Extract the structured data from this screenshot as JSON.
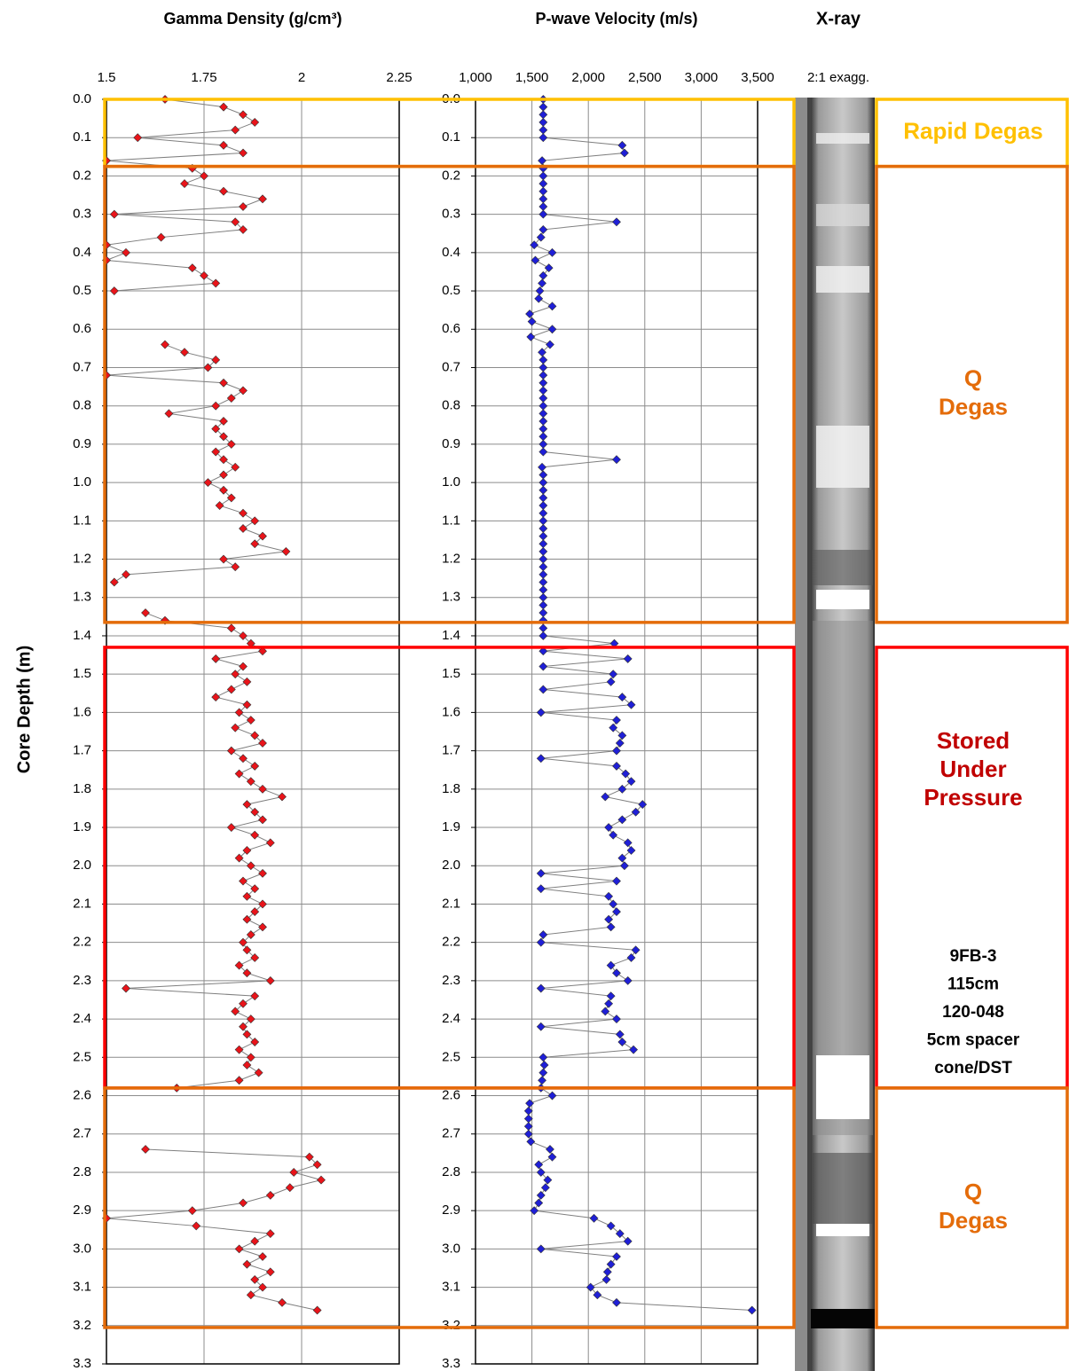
{
  "chart_data": [
    {
      "type": "line",
      "title": "Gamma Density (g/cm³)",
      "y_label": "Core Depth (m)",
      "xlim": [
        1.5,
        2.25
      ],
      "xticks": [
        1.5,
        1.75,
        2,
        2.25
      ],
      "ylim": [
        0,
        3.3
      ],
      "y_reversed": true,
      "yticks": [
        {
          "value": 0,
          "label": "0.0"
        },
        0.1,
        0.2,
        0.3,
        0.4,
        0.5,
        0.6,
        0.7,
        0.8,
        0.9,
        {
          "value": 1,
          "label": "1.0"
        },
        1.1,
        1.2,
        1.3,
        1.4,
        1.5,
        1.6,
        1.7,
        1.8,
        1.9,
        {
          "value": 2,
          "label": "2.0"
        },
        2.1,
        2.2,
        2.3,
        2.4,
        2.5,
        2.6,
        2.7,
        2.8,
        2.9,
        {
          "value": 3,
          "label": "3.0"
        },
        3.1,
        3.2,
        3.3
      ],
      "grid": true,
      "color": "#e8141a",
      "line_color": "#7f7f7f",
      "y": [
        0,
        0.02,
        0.04,
        0.06,
        0.08,
        0.1,
        0.12,
        0.14,
        0.16,
        0.18,
        0.2,
        0.22,
        0.24,
        0.26,
        0.28,
        0.3,
        0.32,
        0.34,
        0.36,
        0.38,
        0.4,
        0.42,
        0.44,
        0.46,
        0.48,
        0.5,
        0.52,
        0.54,
        0.56,
        0.58,
        0.6,
        0.62,
        0.64,
        0.66,
        0.68,
        0.7,
        0.72,
        0.74,
        0.76,
        0.78,
        0.8,
        0.82,
        0.84,
        0.86,
        0.88,
        0.9,
        0.92,
        0.94,
        0.96,
        0.98,
        1,
        1.02,
        1.04,
        1.06,
        1.08,
        1.1,
        1.12,
        1.14,
        1.16,
        1.18,
        1.2,
        1.22,
        1.24,
        1.26,
        1.28,
        1.3,
        1.32,
        1.34,
        1.36,
        1.38,
        1.4,
        1.42,
        1.44,
        1.46,
        1.48,
        1.5,
        1.52,
        1.54,
        1.56,
        1.58,
        1.6,
        1.62,
        1.64,
        1.66,
        1.68,
        1.7,
        1.72,
        1.74,
        1.76,
        1.78,
        1.8,
        1.82,
        1.84,
        1.86,
        1.88,
        1.9,
        1.92,
        1.94,
        1.96,
        1.98,
        2,
        2.02,
        2.04,
        2.06,
        2.08,
        2.1,
        2.12,
        2.14,
        2.16,
        2.18,
        2.2,
        2.22,
        2.24,
        2.26,
        2.28,
        2.3,
        2.32,
        2.34,
        2.36,
        2.38,
        2.4,
        2.42,
        2.44,
        2.46,
        2.48,
        2.5,
        2.52,
        2.54,
        2.56,
        2.58,
        2.6,
        2.62,
        2.64,
        2.66,
        2.68,
        2.7,
        2.72,
        2.74,
        2.76,
        2.78,
        2.8,
        2.82,
        2.84,
        2.86,
        2.88,
        2.9,
        2.92,
        2.94,
        2.96,
        2.98,
        3,
        3.02,
        3.04,
        3.06,
        3.08,
        3.1,
        3.12,
        3.14,
        3.16
      ],
      "values": [
        1.65,
        1.8,
        1.85,
        1.88,
        1.83,
        1.58,
        1.8,
        1.85,
        1.5,
        1.72,
        1.75,
        1.7,
        1.8,
        1.9,
        1.85,
        1.52,
        1.83,
        1.85,
        1.64,
        1.5,
        1.55,
        1.5,
        1.72,
        1.75,
        1.78,
        1.52,
        null,
        null,
        null,
        null,
        null,
        null,
        1.65,
        1.7,
        1.78,
        1.76,
        1.5,
        1.8,
        1.85,
        1.82,
        1.78,
        1.66,
        1.8,
        1.78,
        1.8,
        1.82,
        1.78,
        1.8,
        1.83,
        1.8,
        1.76,
        1.8,
        1.82,
        1.79,
        1.85,
        1.88,
        1.85,
        1.9,
        1.88,
        1.96,
        1.8,
        1.83,
        1.55,
        1.52,
        null,
        null,
        null,
        1.6,
        1.65,
        1.82,
        1.85,
        1.87,
        1.9,
        1.78,
        1.85,
        1.83,
        1.86,
        1.82,
        1.78,
        1.86,
        1.84,
        1.87,
        1.83,
        1.88,
        1.9,
        1.82,
        1.85,
        1.88,
        1.84,
        1.87,
        1.9,
        1.95,
        1.86,
        1.88,
        1.9,
        1.82,
        1.88,
        1.92,
        1.86,
        1.84,
        1.87,
        1.9,
        1.85,
        1.88,
        1.86,
        1.9,
        1.88,
        1.86,
        1.9,
        1.87,
        1.85,
        1.86,
        1.88,
        1.84,
        1.86,
        1.92,
        1.55,
        1.88,
        1.85,
        1.83,
        1.87,
        1.85,
        1.86,
        1.88,
        1.84,
        1.87,
        1.86,
        1.89,
        1.84,
        1.68,
        null,
        null,
        null,
        null,
        null,
        null,
        null,
        1.6,
        2.02,
        2.04,
        1.98,
        2.05,
        1.97,
        1.92,
        1.85,
        1.72,
        1.5,
        1.73,
        1.92,
        1.88,
        1.84,
        1.9,
        1.86,
        1.92,
        1.88,
        1.9,
        1.87,
        1.95,
        2.04
      ]
    },
    {
      "type": "line",
      "title": "P-wave Velocity (m/s)",
      "xlim": [
        1000,
        3500
      ],
      "xticks": [
        {
          "value": 1000,
          "label": "1,000"
        },
        {
          "value": 1500,
          "label": "1,500"
        },
        {
          "value": 2000,
          "label": "2,000"
        },
        {
          "value": 2500,
          "label": "2,500"
        },
        {
          "value": 3000,
          "label": "3,000"
        },
        {
          "value": 3500,
          "label": "3,500"
        }
      ],
      "ylim": [
        0,
        3.3
      ],
      "y_reversed": true,
      "yticks": [
        {
          "value": 0,
          "label": "0.0"
        },
        0.1,
        0.2,
        0.3,
        0.4,
        0.5,
        0.6,
        0.7,
        0.8,
        0.9,
        {
          "value": 1,
          "label": "1.0"
        },
        1.1,
        1.2,
        1.3,
        1.4,
        1.5,
        1.6,
        1.7,
        1.8,
        1.9,
        {
          "value": 2,
          "label": "2.0"
        },
        2.1,
        2.2,
        2.3,
        2.4,
        2.5,
        2.6,
        2.7,
        2.8,
        2.9,
        {
          "value": 3,
          "label": "3.0"
        },
        3.1,
        3.2,
        3.3
      ],
      "grid": true,
      "color": "#1f1fd6",
      "line_color": "#7f7f7f",
      "y": [
        0,
        0.02,
        0.04,
        0.06,
        0.08,
        0.1,
        0.12,
        0.14,
        0.16,
        0.18,
        0.2,
        0.22,
        0.24,
        0.26,
        0.28,
        0.3,
        0.32,
        0.34,
        0.36,
        0.38,
        0.4,
        0.42,
        0.44,
        0.46,
        0.48,
        0.5,
        0.52,
        0.54,
        0.56,
        0.58,
        0.6,
        0.62,
        0.64,
        0.66,
        0.68,
        0.7,
        0.72,
        0.74,
        0.76,
        0.78,
        0.8,
        0.82,
        0.84,
        0.86,
        0.88,
        0.9,
        0.92,
        0.94,
        0.96,
        0.98,
        1,
        1.02,
        1.04,
        1.06,
        1.08,
        1.1,
        1.12,
        1.14,
        1.16,
        1.18,
        1.2,
        1.22,
        1.24,
        1.26,
        1.28,
        1.3,
        1.32,
        1.34,
        1.36,
        1.38,
        1.4,
        1.42,
        1.44,
        1.46,
        1.48,
        1.5,
        1.52,
        1.54,
        1.56,
        1.58,
        1.6,
        1.62,
        1.64,
        1.66,
        1.68,
        1.7,
        1.72,
        1.74,
        1.76,
        1.78,
        1.8,
        1.82,
        1.84,
        1.86,
        1.88,
        1.9,
        1.92,
        1.94,
        1.96,
        1.98,
        2,
        2.02,
        2.04,
        2.06,
        2.08,
        2.1,
        2.12,
        2.14,
        2.16,
        2.18,
        2.2,
        2.22,
        2.24,
        2.26,
        2.28,
        2.3,
        2.32,
        2.34,
        2.36,
        2.38,
        2.4,
        2.42,
        2.44,
        2.46,
        2.48,
        2.5,
        2.52,
        2.54,
        2.56,
        2.58,
        2.6,
        2.62,
        2.64,
        2.66,
        2.68,
        2.7,
        2.72,
        2.74,
        2.76,
        2.78,
        2.8,
        2.82,
        2.84,
        2.86,
        2.88,
        2.9,
        2.92,
        2.94,
        2.96,
        2.98,
        3,
        3.02,
        3.04,
        3.06,
        3.08,
        3.1,
        3.12,
        3.14,
        3.16
      ],
      "values": [
        1600,
        1600,
        1600,
        1600,
        1600,
        1600,
        2300,
        2320,
        1590,
        1600,
        1600,
        1600,
        1600,
        1600,
        1600,
        1600,
        2250,
        1600,
        1580,
        1520,
        1680,
        1530,
        1650,
        1600,
        1590,
        1570,
        1560,
        1680,
        1480,
        1500,
        1680,
        1490,
        1660,
        1590,
        1600,
        1600,
        1600,
        1600,
        1600,
        1600,
        1600,
        1600,
        1600,
        1600,
        1600,
        1600,
        1600,
        2250,
        1590,
        1600,
        1600,
        1600,
        1600,
        1600,
        1600,
        1600,
        1600,
        1600,
        1600,
        1600,
        1600,
        1600,
        1600,
        1600,
        1600,
        1600,
        1600,
        1600,
        1600,
        1600,
        1600,
        2230,
        1600,
        2350,
        1600,
        2220,
        2200,
        1600,
        2300,
        2380,
        1580,
        2250,
        2220,
        2300,
        2280,
        2250,
        1580,
        2250,
        2330,
        2380,
        2300,
        2150,
        2480,
        2420,
        2300,
        2180,
        2220,
        2350,
        2380,
        2300,
        2320,
        1580,
        2250,
        1580,
        2180,
        2220,
        2250,
        2180,
        2200,
        1600,
        1580,
        2420,
        2380,
        2200,
        2250,
        2350,
        1580,
        2200,
        2180,
        2150,
        2250,
        1580,
        2280,
        2300,
        2400,
        1600,
        1610,
        1600,
        1590,
        1580,
        1680,
        1480,
        1470,
        1470,
        1470,
        1470,
        1490,
        1660,
        1680,
        1560,
        1580,
        1640,
        1620,
        1580,
        1560,
        1520,
        2050,
        2200,
        2280,
        2350,
        1580,
        2250,
        2200,
        2170,
        2160,
        2020,
        2080,
        2250,
        3450
      ]
    }
  ],
  "xray": {
    "title": "X-ray",
    "subtitle": "2:1 exagg."
  },
  "zones": [
    {
      "label": [
        "Rapid Degas"
      ],
      "top": 0,
      "bottom": 0.175,
      "color": "#ffc000",
      "text_color": "#ffc000"
    },
    {
      "label": [
        "Q",
        "Degas"
      ],
      "top": 0.175,
      "bottom": 1.365,
      "color": "#e46c0a",
      "text_color": "#e46c0a"
    },
    {
      "label": [
        "Stored",
        "Under",
        "Pressure"
      ],
      "top": 1.43,
      "bottom": 2.58,
      "color": "#ff0000",
      "text_color": "#c00000",
      "note": [
        "9FB-3",
        "115cm",
        "120-048",
        "5cm spacer",
        "cone/DST"
      ]
    },
    {
      "label": [
        "Q",
        "Degas"
      ],
      "top": 2.58,
      "bottom": 3.205,
      "color": "#e46c0a",
      "text_color": "#e46c0a"
    }
  ]
}
